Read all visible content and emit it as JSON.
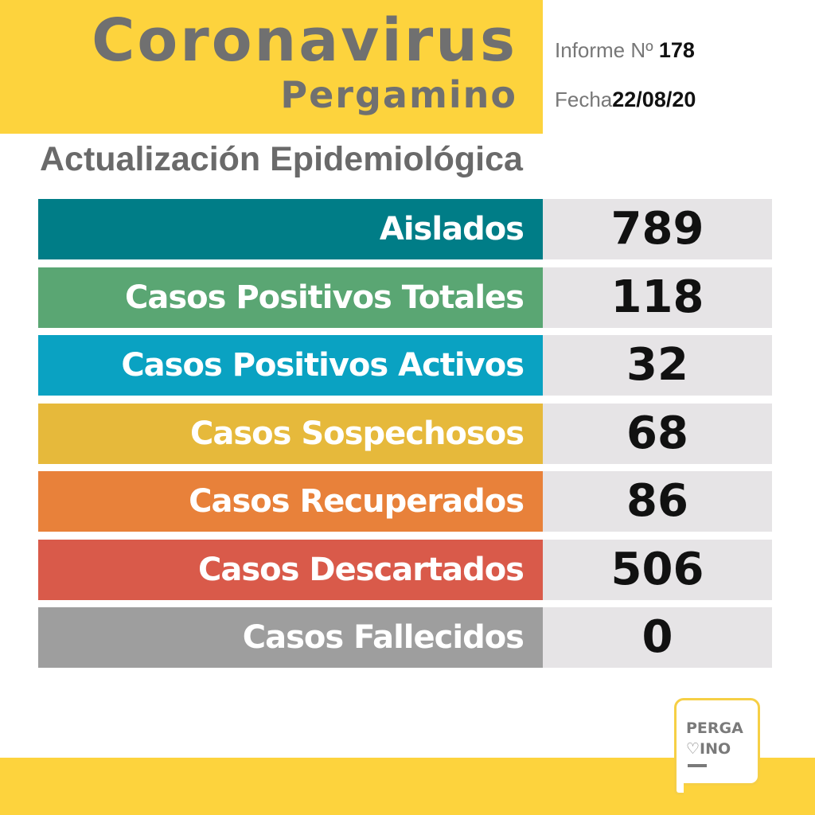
{
  "header": {
    "title": "Coronavirus",
    "city": "Pergamino",
    "report_label": "Informe Nº",
    "report_number": "178",
    "date_label": "Fecha",
    "date": "22/08/20"
  },
  "subtitle": "Actualización Epidemiológica",
  "stats": [
    {
      "label": "Aislados",
      "value": "789",
      "color": "#007d87"
    },
    {
      "label": "Casos Positivos Totales",
      "value": "118",
      "color": "#5aa673"
    },
    {
      "label": "Casos Positivos Activos",
      "value": "32",
      "color": "#0aa2c2"
    },
    {
      "label": "Casos Sospechosos",
      "value": "68",
      "color": "#e6b93b"
    },
    {
      "label": "Casos Recuperados",
      "value": "86",
      "color": "#e8813a"
    },
    {
      "label": "Casos Descartados",
      "value": "506",
      "color": "#d95a4a"
    },
    {
      "label": "Casos Fallecidos",
      "value": "0",
      "color": "#9e9e9e"
    }
  ],
  "logo": {
    "line1": "PERGA",
    "line2": "INO"
  },
  "colors": {
    "brand_yellow": "#fdd33d",
    "header_text": "#707070"
  }
}
